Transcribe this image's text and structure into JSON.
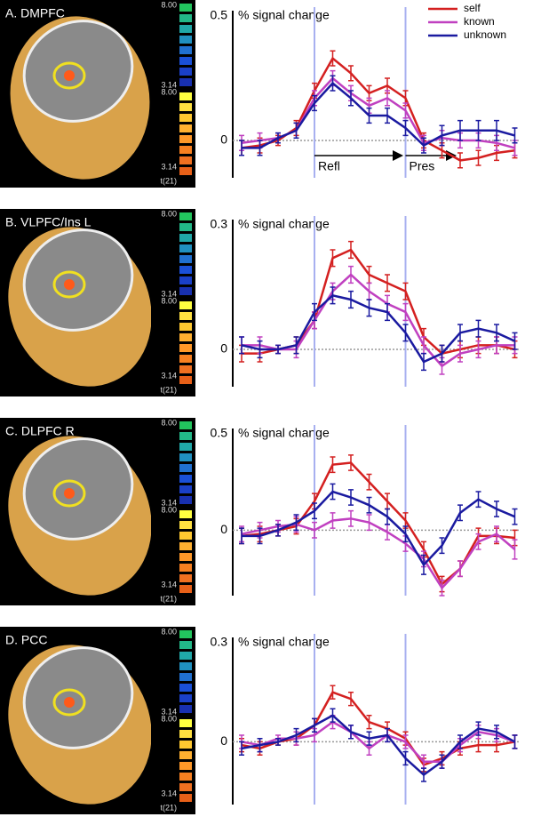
{
  "chart_data": [
    {
      "type": "line",
      "title": "A. DMPFC",
      "colorbar_labels": [
        "8.00",
        "3.14",
        "8.00",
        "3.14",
        "t(21)"
      ],
      "y_label": "% signal change",
      "categories": [
        null,
        null,
        null,
        null,
        null,
        null,
        null,
        null,
        null,
        null,
        null,
        null,
        null,
        null,
        null,
        null
      ],
      "ylim": [
        -0.15,
        0.5
      ],
      "yticks": [
        0,
        0.5
      ],
      "event_lines": [
        4,
        9
      ],
      "legend": "upper right",
      "annotations": [
        {
          "text": "Refl",
          "x": 4
        },
        {
          "text": "Pres",
          "x": 9
        }
      ],
      "series": [
        {
          "name": "self",
          "color": "#d42020",
          "values": [
            -0.03,
            -0.02,
            0.0,
            0.05,
            0.2,
            0.33,
            0.27,
            0.19,
            0.22,
            0.17,
            0.0,
            -0.04,
            -0.08,
            -0.07,
            -0.05,
            -0.04
          ],
          "errors": [
            0.03,
            0.03,
            0.02,
            0.03,
            0.03,
            0.03,
            0.03,
            0.03,
            0.03,
            0.03,
            0.03,
            0.03,
            0.03,
            0.03,
            0.03,
            0.03
          ]
        },
        {
          "name": "known",
          "color": "#c040c0",
          "values": [
            -0.01,
            0.0,
            0.01,
            0.04,
            0.17,
            0.25,
            0.19,
            0.14,
            0.17,
            0.12,
            -0.01,
            0.01,
            0.0,
            0.0,
            -0.01,
            -0.03
          ],
          "errors": [
            0.03,
            0.03,
            0.02,
            0.03,
            0.03,
            0.03,
            0.03,
            0.03,
            0.03,
            0.03,
            0.03,
            0.03,
            0.03,
            0.03,
            0.03,
            0.03
          ]
        },
        {
          "name": "unknown",
          "color": "#1a1aa0",
          "values": [
            -0.03,
            -0.03,
            0.01,
            0.04,
            0.15,
            0.23,
            0.17,
            0.1,
            0.1,
            0.05,
            -0.02,
            0.02,
            0.04,
            0.04,
            0.04,
            0.02
          ],
          "errors": [
            0.03,
            0.03,
            0.02,
            0.03,
            0.03,
            0.03,
            0.03,
            0.03,
            0.03,
            0.03,
            0.03,
            0.04,
            0.04,
            0.04,
            0.04,
            0.03
          ]
        }
      ]
    },
    {
      "type": "line",
      "title": "B. VLPFC/Ins L",
      "colorbar_labels": [
        "8.00",
        "3.14",
        "8.00",
        "3.14",
        "t(21)"
      ],
      "y_label": "% signal change",
      "categories": [
        null,
        null,
        null,
        null,
        null,
        null,
        null,
        null,
        null,
        null,
        null,
        null,
        null,
        null,
        null,
        null
      ],
      "ylim": [
        -0.09,
        0.3
      ],
      "yticks": [
        0,
        0.3
      ],
      "event_lines": [
        4,
        9
      ],
      "series": [
        {
          "color": "#d42020",
          "values": [
            -0.01,
            -0.01,
            0.0,
            0.01,
            0.07,
            0.22,
            0.24,
            0.18,
            0.16,
            0.14,
            0.03,
            -0.01,
            0.0,
            0.01,
            0.01,
            0.0
          ],
          "errors": [
            0.02,
            0.02,
            0.01,
            0.02,
            0.02,
            0.02,
            0.02,
            0.02,
            0.02,
            0.02,
            0.02,
            0.02,
            0.02,
            0.02,
            0.02,
            0.02
          ]
        },
        {
          "color": "#c040c0",
          "values": [
            0.01,
            0.01,
            0.0,
            0.0,
            0.07,
            0.14,
            0.18,
            0.14,
            0.11,
            0.09,
            0.01,
            -0.04,
            -0.01,
            0.0,
            0.01,
            0.01
          ],
          "errors": [
            0.02,
            0.02,
            0.01,
            0.02,
            0.02,
            0.02,
            0.02,
            0.02,
            0.02,
            0.02,
            0.02,
            0.02,
            0.02,
            0.02,
            0.02,
            0.02
          ]
        },
        {
          "color": "#1a1aa0",
          "values": [
            0.01,
            0.0,
            0.0,
            0.01,
            0.09,
            0.13,
            0.12,
            0.1,
            0.09,
            0.04,
            -0.03,
            -0.01,
            0.04,
            0.05,
            0.04,
            0.02
          ],
          "errors": [
            0.02,
            0.02,
            0.01,
            0.02,
            0.02,
            0.02,
            0.02,
            0.02,
            0.02,
            0.02,
            0.02,
            0.02,
            0.02,
            0.02,
            0.02,
            0.02
          ]
        }
      ]
    },
    {
      "type": "line",
      "title": "C. DLPFC R",
      "colorbar_labels": [
        "8.00",
        "3.14",
        "8.00",
        "3.14",
        "t(21)"
      ],
      "y_label": "% signal change",
      "categories": [
        null,
        null,
        null,
        null,
        null,
        null,
        null,
        null,
        null,
        null,
        null,
        null,
        null,
        null,
        null,
        null
      ],
      "ylim": [
        -0.34,
        0.5
      ],
      "yticks": [
        0,
        0.5
      ],
      "event_lines": [
        4,
        9
      ],
      "series": [
        {
          "color": "#d42020",
          "values": [
            -0.03,
            -0.02,
            0.0,
            0.02,
            0.15,
            0.34,
            0.35,
            0.25,
            0.15,
            0.05,
            -0.1,
            -0.28,
            -0.2,
            -0.03,
            -0.03,
            -0.04
          ],
          "errors": [
            0.04,
            0.04,
            0.03,
            0.04,
            0.04,
            0.04,
            0.04,
            0.04,
            0.04,
            0.04,
            0.04,
            0.04,
            0.04,
            0.04,
            0.04,
            0.04
          ]
        },
        {
          "color": "#c040c0",
          "values": [
            -0.02,
            0.0,
            0.02,
            0.03,
            0.0,
            0.05,
            0.06,
            0.04,
            -0.01,
            -0.07,
            -0.15,
            -0.3,
            -0.2,
            -0.06,
            -0.02,
            -0.1
          ],
          "errors": [
            0.04,
            0.04,
            0.03,
            0.04,
            0.04,
            0.04,
            0.04,
            0.04,
            0.04,
            0.04,
            0.04,
            0.04,
            0.04,
            0.04,
            0.04,
            0.05
          ]
        },
        {
          "color": "#1a1aa0",
          "values": [
            -0.03,
            -0.03,
            0.0,
            0.04,
            0.1,
            0.2,
            0.17,
            0.13,
            0.07,
            -0.02,
            -0.18,
            -0.08,
            0.09,
            0.16,
            0.11,
            0.07
          ],
          "errors": [
            0.04,
            0.04,
            0.03,
            0.04,
            0.04,
            0.04,
            0.04,
            0.04,
            0.04,
            0.04,
            0.05,
            0.04,
            0.04,
            0.04,
            0.04,
            0.04
          ]
        }
      ]
    },
    {
      "type": "line",
      "title": "D. PCC",
      "colorbar_labels": [
        "8.00",
        "3.14",
        "8.00",
        "3.14",
        "t(21)"
      ],
      "y_label": "% signal change",
      "categories": [
        null,
        null,
        null,
        null,
        null,
        null,
        null,
        null,
        null,
        null,
        null,
        null,
        null,
        null,
        null,
        null
      ],
      "ylim": [
        -0.19,
        0.3
      ],
      "yticks": [
        0,
        0.3
      ],
      "event_lines": [
        4,
        9
      ],
      "series": [
        {
          "color": "#d42020",
          "values": [
            -0.01,
            -0.02,
            0.0,
            0.01,
            0.05,
            0.15,
            0.13,
            0.06,
            0.04,
            0.01,
            -0.07,
            -0.05,
            -0.02,
            -0.01,
            -0.01,
            0.0
          ],
          "errors": [
            0.02,
            0.02,
            0.01,
            0.02,
            0.02,
            0.02,
            0.02,
            0.02,
            0.02,
            0.02,
            0.02,
            0.02,
            0.02,
            0.02,
            0.02,
            0.02
          ]
        },
        {
          "color": "#c040c0",
          "values": [
            0.0,
            -0.01,
            0.01,
            0.01,
            0.02,
            0.06,
            0.03,
            -0.02,
            0.02,
            0.0,
            -0.06,
            -0.06,
            -0.01,
            0.03,
            0.02,
            0.0
          ],
          "errors": [
            0.02,
            0.02,
            0.01,
            0.02,
            0.02,
            0.02,
            0.02,
            0.02,
            0.02,
            0.02,
            0.02,
            0.02,
            0.02,
            0.02,
            0.02,
            0.02
          ]
        },
        {
          "color": "#1a1aa0",
          "values": [
            -0.02,
            -0.01,
            0.0,
            0.02,
            0.05,
            0.08,
            0.03,
            0.01,
            0.02,
            -0.05,
            -0.1,
            -0.06,
            0.0,
            0.04,
            0.03,
            0.0
          ],
          "errors": [
            0.02,
            0.02,
            0.01,
            0.02,
            0.02,
            0.02,
            0.02,
            0.02,
            0.02,
            0.02,
            0.02,
            0.02,
            0.02,
            0.02,
            0.02,
            0.02
          ]
        }
      ]
    }
  ]
}
